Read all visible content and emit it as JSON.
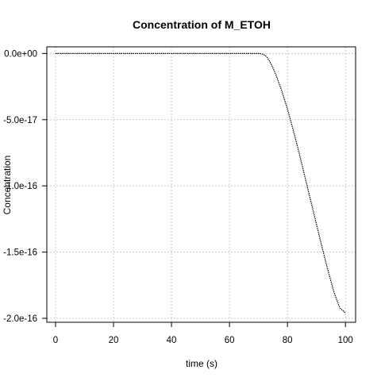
{
  "chart_data": {
    "type": "line",
    "title": "Concentration of M_ETOH",
    "xlabel": "time (s)",
    "ylabel": "Concentration",
    "xlim": [
      -3,
      103.5
    ],
    "ylim": [
      -2.03e-16,
      5e-18
    ],
    "x_ticks": [
      0,
      20,
      40,
      60,
      80,
      100
    ],
    "x_tick_labels": [
      "0",
      "20",
      "40",
      "60",
      "80",
      "100"
    ],
    "y_ticks": [
      0,
      -5e-17,
      -1e-16,
      -1.5e-16,
      -2e-16
    ],
    "y_tick_labels": [
      "0.0e+00",
      "-5.0e-17",
      "-1.0e-16",
      "-1.5e-16",
      "-2.0e-16"
    ],
    "grid": true,
    "grid_color": "#c8c8c8",
    "line_color": "#000000",
    "series": [
      {
        "x": [
          0,
          10,
          20,
          30,
          40,
          50,
          60,
          65,
          68,
          69,
          70,
          71,
          72,
          73,
          74,
          75,
          76,
          78,
          80,
          82,
          84,
          86,
          88,
          90,
          92,
          94,
          96,
          98,
          100
        ],
        "values": [
          0,
          0,
          0,
          0,
          0,
          0,
          0,
          0,
          0,
          0,
          0,
          -2e-19,
          -1e-18,
          -3e-18,
          -6.5e-18,
          -1.1e-17,
          -1.6e-17,
          -2.8e-17,
          -4.2e-17,
          -5.8e-17,
          -7.5e-17,
          -9.3e-17,
          -1.11e-16,
          -1.29e-16,
          -1.47e-16,
          -1.64e-16,
          -1.8e-16,
          -1.92e-16,
          -1.96e-16
        ]
      }
    ]
  }
}
